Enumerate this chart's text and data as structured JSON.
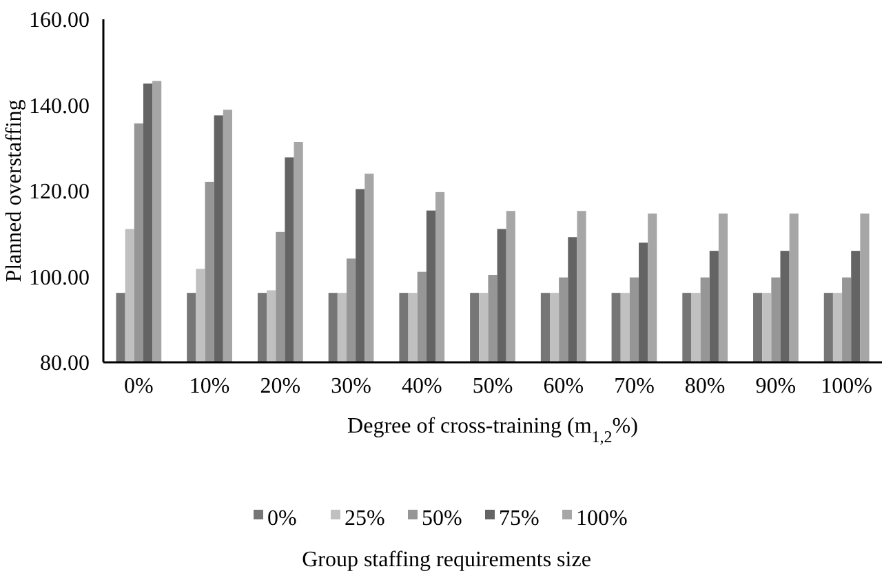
{
  "chart_data": {
    "type": "bar",
    "xlabel": "Degree of cross-training (m$_{1,2}$%)",
    "ylabel": "Planned overstaffing",
    "legend_title": "Group staffing requirements size",
    "legend": "bottom",
    "grid": false,
    "categories": [
      "0%",
      "10%",
      "20%",
      "30%",
      "40%",
      "50%",
      "60%",
      "70%",
      "80%",
      "90%",
      "100%"
    ],
    "ylim": [
      80,
      160
    ],
    "yticks": [
      {
        "value": 80,
        "label": "80.00"
      },
      {
        "value": 100,
        "label": "100.00"
      },
      {
        "value": 120,
        "label": "120.00"
      },
      {
        "value": 140,
        "label": "140.00"
      },
      {
        "value": 160,
        "label": "160.00"
      }
    ],
    "series": [
      {
        "name": "0%",
        "color": "#767676",
        "values": [
          96.2,
          96.2,
          96.2,
          96.2,
          96.2,
          96.2,
          96.2,
          96.2,
          96.2,
          96.2,
          96.2
        ]
      },
      {
        "name": "25%",
        "color": "#c0c0c0",
        "values": [
          111.1,
          101.8,
          96.8,
          96.2,
          96.2,
          96.2,
          96.2,
          96.2,
          96.2,
          96.2,
          96.2
        ]
      },
      {
        "name": "50%",
        "color": "#969696",
        "values": [
          135.7,
          122.1,
          110.4,
          104.2,
          101.1,
          100.4,
          99.8,
          99.8,
          99.8,
          99.8,
          99.8
        ]
      },
      {
        "name": "75%",
        "color": "#646464",
        "values": [
          145.0,
          137.6,
          127.8,
          120.4,
          115.4,
          111.1,
          109.2,
          107.9,
          106,
          106,
          106
        ]
      },
      {
        "name": "100%",
        "color": "#a6a6a6",
        "values": [
          145.6,
          138.9,
          131.4,
          124,
          119.7,
          115.3,
          115.3,
          114.7,
          114.7,
          114.7,
          114.7
        ]
      }
    ]
  }
}
